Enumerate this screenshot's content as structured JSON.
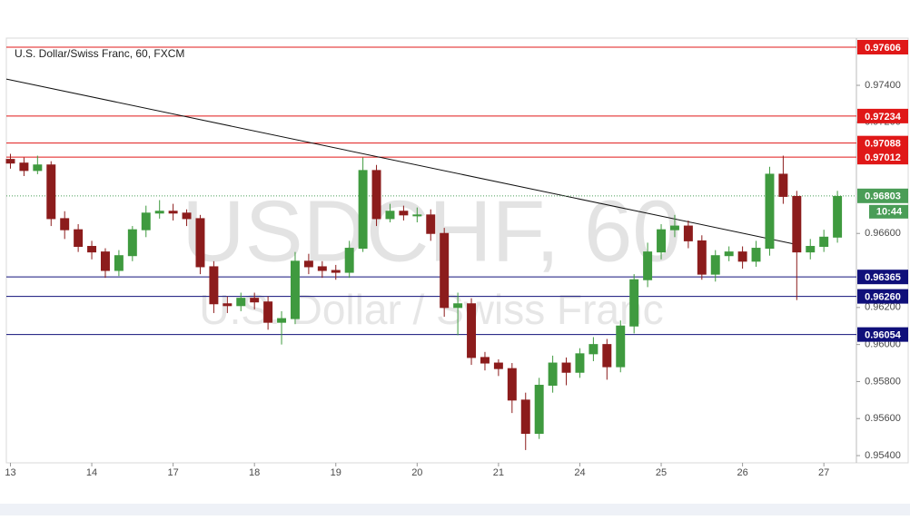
{
  "chart_data": {
    "type": "candlestick",
    "title": "U.S. Dollar/Swiss Franc, 60, FXCM",
    "watermark": {
      "symbol": "USDCHF, 60",
      "name": "U.S. Dollar / Swiss Franc"
    },
    "up_color": "#3f9a3f",
    "down_color": "#8c1c1c",
    "xlim": [
      -0.3,
      62.4
    ],
    "ylim": [
      0.95361,
      0.97655
    ],
    "xticks": [
      {
        "value": 0,
        "label": "13"
      },
      {
        "value": 6,
        "label": "14"
      },
      {
        "value": 12,
        "label": "17"
      },
      {
        "value": 18,
        "label": "18"
      },
      {
        "value": 24,
        "label": "19"
      },
      {
        "value": 30,
        "label": "20"
      },
      {
        "value": 36,
        "label": "21"
      },
      {
        "value": 42,
        "label": "24"
      },
      {
        "value": 48,
        "label": "25"
      },
      {
        "value": 54,
        "label": "26"
      },
      {
        "value": 60,
        "label": "27"
      }
    ],
    "yticks": [
      {
        "value": 0.954,
        "label": "0.95400"
      },
      {
        "value": 0.956,
        "label": "0.95600"
      },
      {
        "value": 0.958,
        "label": "0.95800"
      },
      {
        "value": 0.96,
        "label": "0.96000"
      },
      {
        "value": 0.962,
        "label": "0.96200"
      },
      {
        "value": 0.966,
        "label": "0.96600"
      },
      {
        "value": 0.972,
        "label": "0.97200"
      },
      {
        "value": 0.974,
        "label": "0.97400"
      }
    ],
    "open": [
      0.97,
      0.9698,
      0.9694,
      0.9697,
      0.9668,
      0.9662,
      0.9653,
      0.965,
      0.964,
      0.9648,
      0.9662,
      0.9671,
      0.9672,
      0.9671,
      0.9668,
      0.9642,
      0.9622,
      0.9621,
      0.9625,
      0.9623,
      0.9612,
      0.9614,
      0.9645,
      0.9642,
      0.964,
      0.9639,
      0.9652,
      0.9694,
      0.9668,
      0.9672,
      0.967,
      0.967,
      0.966,
      0.962,
      0.9622,
      0.9593,
      0.959,
      0.9587,
      0.957,
      0.9552,
      0.9578,
      0.959,
      0.9585,
      0.9595,
      0.96,
      0.9588,
      0.961,
      0.9635,
      0.965,
      0.9662,
      0.9664,
      0.9656,
      0.9638,
      0.9648,
      0.965,
      0.9645,
      0.9652,
      0.9692,
      0.968,
      0.965,
      0.9653,
      0.9658
    ],
    "high": [
      0.9703,
      0.9701,
      0.9702,
      0.9699,
      0.9672,
      0.9665,
      0.9656,
      0.9652,
      0.9651,
      0.9664,
      0.9675,
      0.9678,
      0.9676,
      0.9673,
      0.967,
      0.9645,
      0.9626,
      0.9628,
      0.9628,
      0.9626,
      0.9618,
      0.965,
      0.9649,
      0.9645,
      0.9643,
      0.9656,
      0.9701,
      0.9697,
      0.9676,
      0.9675,
      0.9674,
      0.9673,
      0.9663,
      0.9628,
      0.9625,
      0.9596,
      0.9592,
      0.959,
      0.9574,
      0.9582,
      0.9594,
      0.9593,
      0.9598,
      0.9604,
      0.9603,
      0.9613,
      0.9638,
      0.9655,
      0.9665,
      0.967,
      0.9667,
      0.9659,
      0.9651,
      0.9653,
      0.9653,
      0.9656,
      0.9696,
      0.9702,
      0.9683,
      0.9657,
      0.9662,
      0.9683
    ],
    "low": [
      0.9695,
      0.9691,
      0.9692,
      0.9664,
      0.9657,
      0.965,
      0.9646,
      0.9636,
      0.9637,
      0.9645,
      0.9658,
      0.9668,
      0.9667,
      0.9664,
      0.9638,
      0.9617,
      0.9617,
      0.9618,
      0.9619,
      0.9608,
      0.96,
      0.9611,
      0.9638,
      0.9636,
      0.9635,
      0.9636,
      0.965,
      0.9664,
      0.9666,
      0.9667,
      0.9666,
      0.9656,
      0.9615,
      0.9605,
      0.9589,
      0.9586,
      0.9583,
      0.9563,
      0.9543,
      0.9549,
      0.9574,
      0.9578,
      0.9582,
      0.9591,
      0.9581,
      0.9585,
      0.9606,
      0.9631,
      0.9646,
      0.9658,
      0.9652,
      0.9635,
      0.9634,
      0.9645,
      0.9641,
      0.9642,
      0.9648,
      0.9676,
      0.9624,
      0.9646,
      0.965,
      0.9655
    ],
    "close": [
      0.9698,
      0.9694,
      0.9697,
      0.9668,
      0.9662,
      0.9653,
      0.965,
      0.964,
      0.9648,
      0.9662,
      0.9671,
      0.9672,
      0.9671,
      0.9668,
      0.9642,
      0.9622,
      0.9621,
      0.9625,
      0.9623,
      0.9612,
      0.9614,
      0.9645,
      0.9642,
      0.964,
      0.9639,
      0.9652,
      0.9694,
      0.9668,
      0.9672,
      0.967,
      0.967,
      0.966,
      0.962,
      0.9622,
      0.9593,
      0.959,
      0.9587,
      0.957,
      0.9552,
      0.9578,
      0.959,
      0.9585,
      0.9595,
      0.96,
      0.9588,
      0.961,
      0.9635,
      0.965,
      0.9662,
      0.9664,
      0.9656,
      0.9638,
      0.9648,
      0.965,
      0.9645,
      0.9652,
      0.9692,
      0.968,
      0.965,
      0.9653,
      0.9658,
      0.968
    ],
    "levels": [
      {
        "value": 0.97606,
        "color": "#e01818"
      },
      {
        "value": 0.97234,
        "color": "#e01818"
      },
      {
        "value": 0.97088,
        "color": "#e01818"
      },
      {
        "value": 0.97012,
        "color": "#e01818"
      },
      {
        "value": 0.96365,
        "color": "#10107a"
      },
      {
        "value": 0.9626,
        "label": "0.96260",
        "color": "#10107a"
      },
      {
        "value": 0.96054,
        "color": "#10107a"
      }
    ],
    "trendline": {
      "x": [
        -0.3,
        58.2
      ],
      "y": [
        0.97434,
        0.96537
      ],
      "color": "#111111"
    },
    "last_price": {
      "value": 0.96803,
      "countdown": "10:44",
      "color": "#4a9d57"
    }
  }
}
